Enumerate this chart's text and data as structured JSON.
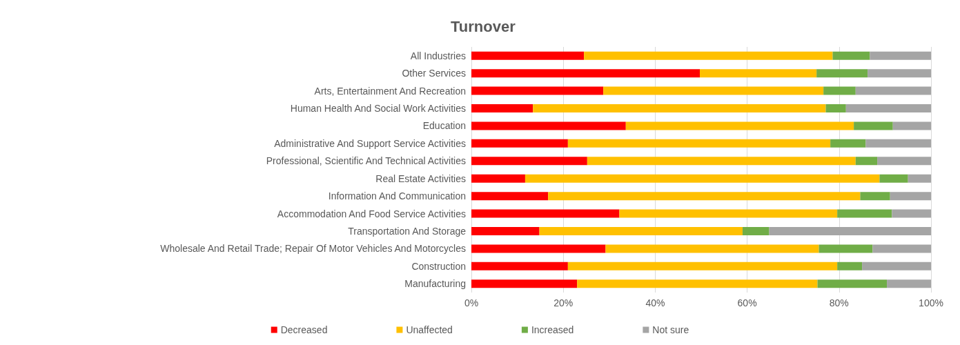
{
  "chart_data": {
    "type": "bar",
    "title": "Turnover",
    "orientation": "horizontal",
    "stacked": true,
    "categories": [
      "All Industries",
      "Other Services",
      "Arts, Entertainment And Recreation",
      "Human Health And Social Work Activities",
      "Education",
      "Administrative And Support Service Activities",
      "Professional, Scientific And Technical Activities",
      "Real Estate Activities",
      "Information And Communication",
      "Accommodation And Food Service Activities",
      "Transportation And Storage",
      "Wholesale And Retail Trade; Repair Of Motor Vehicles And Motorcycles",
      "Construction",
      "Manufacturing"
    ],
    "series": [
      {
        "name": "Decreased",
        "color": "#ff0000",
        "values": [
          24.5,
          49.7,
          28.7,
          13.4,
          33.6,
          21.0,
          25.2,
          11.7,
          16.7,
          32.2,
          14.8,
          29.2,
          21.0,
          23.0
        ]
      },
      {
        "name": "Unaffected",
        "color": "#ffc000",
        "values": [
          54.1,
          25.4,
          47.9,
          63.7,
          49.6,
          57.1,
          58.4,
          77.1,
          67.9,
          47.4,
          44.2,
          46.4,
          58.6,
          52.3
        ]
      },
      {
        "name": "Increased",
        "color": "#70ad47",
        "values": [
          8.1,
          11.1,
          7.0,
          4.4,
          8.5,
          7.7,
          4.7,
          6.2,
          6.5,
          11.9,
          5.8,
          11.7,
          5.4,
          15.1
        ]
      },
      {
        "name": "Not sure",
        "color": "#a5a5a5",
        "values": [
          13.3,
          13.8,
          16.4,
          18.5,
          8.3,
          14.2,
          11.7,
          5.0,
          8.9,
          8.5,
          35.2,
          12.7,
          15.0,
          9.6
        ]
      }
    ],
    "xlim": [
      0,
      100
    ],
    "xticks": [
      {
        "value": 0,
        "label": "0%"
      },
      {
        "value": 20,
        "label": "20%"
      },
      {
        "value": 40,
        "label": "40%"
      },
      {
        "value": 60,
        "label": "60%"
      },
      {
        "value": 80,
        "label": "80%"
      },
      {
        "value": 100,
        "label": "100%"
      }
    ],
    "grid": "x",
    "legend": "bottom"
  }
}
